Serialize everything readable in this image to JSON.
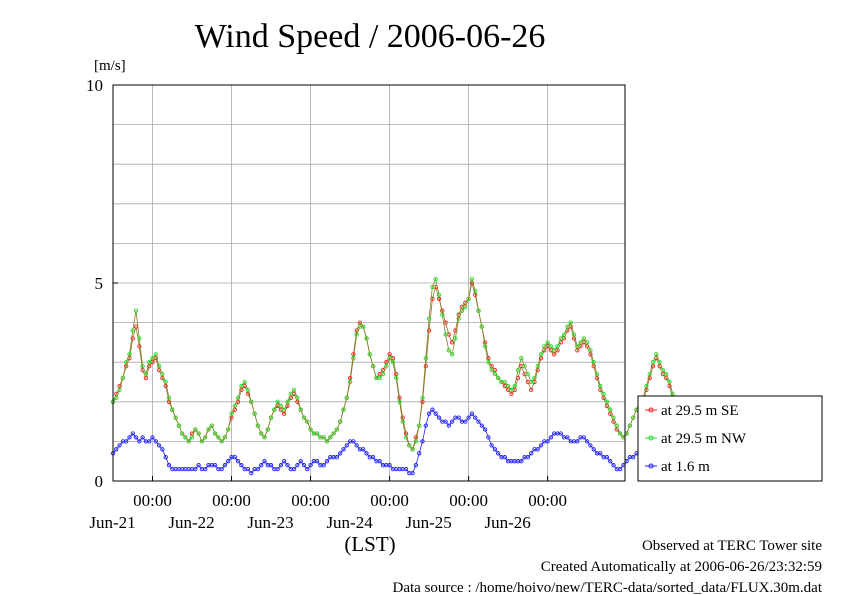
{
  "chart_data": {
    "type": "line",
    "title": "Wind Speed / 2006-06-26",
    "ylabel": "[m/s]",
    "xlabel": "(LST)",
    "ylim": [
      0,
      10
    ],
    "yticks": [
      "0",
      "5",
      "10"
    ],
    "xlim": [
      "2006-06-20T12:00",
      "2006-06-26T23:30"
    ],
    "xticks": [
      {
        "time": "00:00",
        "date": "Jun-21"
      },
      {
        "time": "00:00",
        "date": "Jun-22"
      },
      {
        "time": "00:00",
        "date": "Jun-23"
      },
      {
        "time": "00:00",
        "date": "Jun-24"
      },
      {
        "time": "00:00",
        "date": "Jun-25"
      },
      {
        "time": "00:00",
        "date": "Jun-26"
      }
    ],
    "grid": true,
    "legend_position": "right",
    "interval_hours": 1,
    "series": [
      {
        "name": "at 29.5 m SE",
        "color": "#ff2020",
        "start": "2006-06-20T12:00",
        "values": [
          2.0,
          2.2,
          2.4,
          2.6,
          2.9,
          3.1,
          3.6,
          3.9,
          3.4,
          2.8,
          2.6,
          2.9,
          3.0,
          3.1,
          2.8,
          2.6,
          2.4,
          2.0,
          1.8,
          1.6,
          1.4,
          1.2,
          1.1,
          1.0,
          1.2,
          1.3,
          1.2,
          1.0,
          1.1,
          1.3,
          1.4,
          1.2,
          1.1,
          1.0,
          1.1,
          1.3,
          1.6,
          1.8,
          2.0,
          2.3,
          2.4,
          2.2,
          2.0,
          1.7,
          1.4,
          1.2,
          1.1,
          1.3,
          1.6,
          1.8,
          1.9,
          1.8,
          1.7,
          1.9,
          2.1,
          2.2,
          2.0,
          1.8,
          1.6,
          1.5,
          1.3,
          1.2,
          1.2,
          1.1,
          1.1,
          1.0,
          1.1,
          1.2,
          1.3,
          1.5,
          1.8,
          2.1,
          2.6,
          3.2,
          3.8,
          4.0,
          3.9,
          3.6,
          3.2,
          2.9,
          2.6,
          2.7,
          2.8,
          3.0,
          3.2,
          3.1,
          2.7,
          2.1,
          1.6,
          1.2,
          0.9,
          0.8,
          1.1,
          1.4,
          2.0,
          2.9,
          3.8,
          4.6,
          4.9,
          4.6,
          4.3,
          4.0,
          3.7,
          3.5,
          3.8,
          4.2,
          4.4,
          4.5,
          4.6,
          5.0,
          4.7,
          4.3,
          3.9,
          3.5,
          3.1,
          2.9,
          2.8,
          2.6,
          2.5,
          2.4,
          2.3,
          2.2,
          2.3,
          2.6,
          2.9,
          2.7,
          2.5,
          2.3,
          2.5,
          2.8,
          3.1,
          3.3,
          3.4,
          3.3,
          3.2,
          3.3,
          3.5,
          3.6,
          3.8,
          3.9,
          3.6,
          3.3,
          3.4,
          3.5,
          3.4,
          3.2,
          2.9,
          2.6,
          2.3,
          2.1,
          1.9,
          1.7,
          1.5,
          1.3,
          1.2,
          1.1,
          1.2,
          1.4,
          1.6,
          1.8,
          1.9,
          2.0,
          2.3,
          2.6,
          2.9,
          3.1,
          2.9,
          2.7,
          2.6,
          2.4,
          2.1,
          1.8,
          1.6,
          1.5
        ]
      },
      {
        "name": "at 29.5 m NW",
        "color": "#20e020",
        "start": "2006-06-20T12:00",
        "values": [
          2.0,
          2.1,
          2.3,
          2.6,
          3.0,
          3.2,
          3.8,
          4.3,
          3.6,
          2.9,
          2.7,
          3.0,
          3.1,
          3.2,
          2.9,
          2.7,
          2.5,
          2.1,
          1.8,
          1.6,
          1.4,
          1.2,
          1.1,
          1.0,
          1.1,
          1.3,
          1.2,
          1.0,
          1.1,
          1.3,
          1.4,
          1.2,
          1.1,
          1.0,
          1.1,
          1.3,
          1.7,
          1.9,
          2.1,
          2.4,
          2.5,
          2.3,
          2.0,
          1.7,
          1.4,
          1.2,
          1.1,
          1.3,
          1.6,
          1.8,
          2.0,
          1.9,
          1.8,
          2.0,
          2.2,
          2.3,
          2.1,
          1.8,
          1.6,
          1.5,
          1.3,
          1.2,
          1.2,
          1.1,
          1.1,
          1.0,
          1.1,
          1.2,
          1.3,
          1.5,
          1.8,
          2.1,
          2.5,
          3.1,
          3.7,
          3.9,
          3.9,
          3.6,
          3.2,
          2.9,
          2.6,
          2.6,
          2.7,
          2.9,
          3.1,
          3.0,
          2.6,
          2.0,
          1.5,
          1.1,
          0.9,
          0.8,
          1.0,
          1.4,
          2.1,
          3.1,
          4.1,
          4.9,
          5.1,
          4.7,
          4.2,
          3.7,
          3.3,
          3.2,
          3.6,
          4.1,
          4.3,
          4.4,
          4.6,
          5.1,
          4.8,
          4.3,
          3.9,
          3.4,
          3.0,
          2.8,
          2.7,
          2.6,
          2.5,
          2.5,
          2.4,
          2.3,
          2.4,
          2.8,
          3.1,
          2.9,
          2.7,
          2.5,
          2.6,
          2.9,
          3.2,
          3.4,
          3.5,
          3.4,
          3.3,
          3.4,
          3.6,
          3.7,
          3.9,
          4.0,
          3.7,
          3.4,
          3.5,
          3.6,
          3.5,
          3.3,
          3.0,
          2.7,
          2.4,
          2.2,
          2.0,
          1.8,
          1.6,
          1.4,
          1.2,
          1.1,
          1.2,
          1.4,
          1.6,
          1.8,
          2.0,
          2.1,
          2.4,
          2.7,
          3.0,
          3.2,
          3.0,
          2.8,
          2.7,
          2.5,
          2.2,
          1.9,
          1.7,
          1.6
        ]
      },
      {
        "name": "at 1.6 m",
        "color": "#2020ff",
        "start": "2006-06-20T12:00",
        "values": [
          0.7,
          0.8,
          0.9,
          1.0,
          1.0,
          1.1,
          1.2,
          1.1,
          1.0,
          1.1,
          1.0,
          1.0,
          1.1,
          1.0,
          0.9,
          0.8,
          0.6,
          0.4,
          0.3,
          0.3,
          0.3,
          0.3,
          0.3,
          0.3,
          0.3,
          0.3,
          0.4,
          0.3,
          0.3,
          0.4,
          0.4,
          0.4,
          0.3,
          0.3,
          0.4,
          0.5,
          0.6,
          0.6,
          0.5,
          0.4,
          0.3,
          0.3,
          0.2,
          0.3,
          0.3,
          0.4,
          0.5,
          0.4,
          0.4,
          0.3,
          0.3,
          0.4,
          0.5,
          0.4,
          0.3,
          0.3,
          0.4,
          0.5,
          0.4,
          0.3,
          0.4,
          0.5,
          0.5,
          0.4,
          0.4,
          0.5,
          0.6,
          0.6,
          0.6,
          0.7,
          0.8,
          0.9,
          1.0,
          1.0,
          0.9,
          0.8,
          0.8,
          0.7,
          0.6,
          0.6,
          0.5,
          0.5,
          0.4,
          0.4,
          0.4,
          0.3,
          0.3,
          0.3,
          0.3,
          0.3,
          0.2,
          0.2,
          0.4,
          0.7,
          1.0,
          1.4,
          1.7,
          1.8,
          1.7,
          1.6,
          1.5,
          1.5,
          1.4,
          1.5,
          1.6,
          1.6,
          1.5,
          1.5,
          1.6,
          1.7,
          1.6,
          1.5,
          1.4,
          1.3,
          1.1,
          0.9,
          0.8,
          0.7,
          0.6,
          0.6,
          0.5,
          0.5,
          0.5,
          0.5,
          0.5,
          0.6,
          0.6,
          0.7,
          0.8,
          0.8,
          0.9,
          1.0,
          1.0,
          1.1,
          1.2,
          1.2,
          1.2,
          1.1,
          1.1,
          1.0,
          1.0,
          1.0,
          1.1,
          1.1,
          1.0,
          0.9,
          0.8,
          0.7,
          0.7,
          0.6,
          0.6,
          0.5,
          0.4,
          0.3,
          0.3,
          0.4,
          0.5,
          0.6,
          0.6,
          0.7,
          0.7,
          0.6,
          0.6,
          0.7,
          0.8,
          0.9,
          0.9,
          0.8,
          0.7,
          0.6,
          0.5,
          0.4,
          0.4,
          0.3
        ]
      }
    ]
  },
  "footer": {
    "line1": "Observed at TERC Tower site",
    "line2": "Created Automatically at 2006-06-26/23:32:59",
    "line3": "Data source : /home/hoivo/new/TERC-data/sorted_data/FLUX.30m.dat"
  }
}
